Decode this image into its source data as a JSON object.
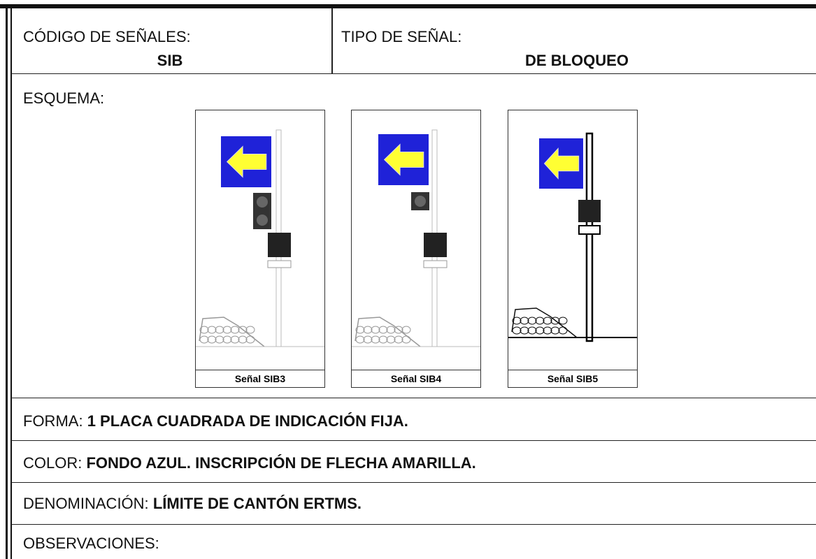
{
  "header": {
    "codigo": {
      "label": "CÓDIGO DE SEÑALES:",
      "value": "SIB"
    },
    "tipo": {
      "label": "TIPO DE SEÑAL:",
      "value": "DE BLOQUEO"
    }
  },
  "esquema": {
    "label": "ESQUEMA:",
    "signals": [
      {
        "caption": "Señal SIB3"
      },
      {
        "caption": "Señal SIB4"
      },
      {
        "caption": "Señal SIB5"
      }
    ]
  },
  "forma": {
    "label": "FORMA:",
    "value": "1 PLACA CUADRADA DE INDICACIÓN FIJA."
  },
  "color": {
    "label": "COLOR:",
    "value": "FONDO AZUL. INSCRIPCIÓN DE FLECHA AMARILLA."
  },
  "denominacion": {
    "label": "DENOMINACIÓN:",
    "value": "LÍMITE DE CANTÓN ERTMS."
  },
  "observaciones": {
    "label": "OBSERVACIONES:"
  }
}
